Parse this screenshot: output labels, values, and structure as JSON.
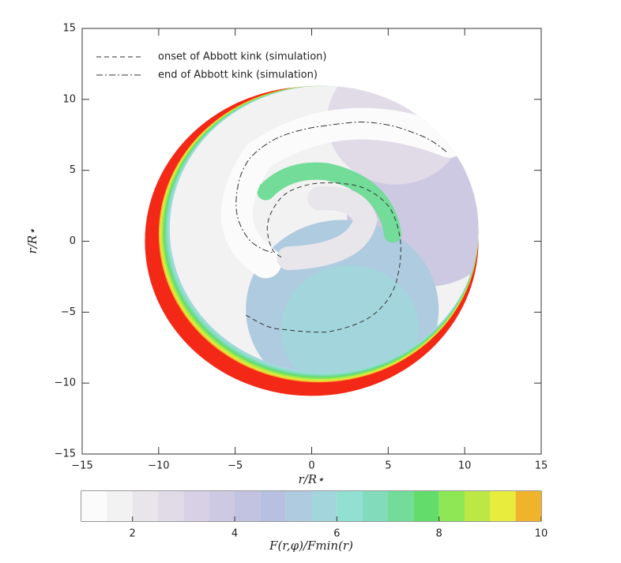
{
  "chart_data": {
    "type": "contour",
    "xlabel": "r/R⋆",
    "ylabel": "r/R⋆",
    "xlim": [
      -15,
      15
    ],
    "ylim": [
      -15,
      15
    ],
    "xticks": [
      {
        "value": -15,
        "label": "−15"
      },
      {
        "value": -10,
        "label": "−10"
      },
      {
        "value": -5,
        "label": "−5"
      },
      0,
      5,
      10,
      15
    ],
    "yticks": [
      {
        "value": -15,
        "label": "−15"
      },
      {
        "value": -10,
        "label": "−10"
      },
      {
        "value": -5,
        "label": "−5"
      },
      0,
      5,
      10,
      15
    ],
    "legend": [
      "onset of Abbott kink (simulation)",
      "end of Abbott kink (simulation)"
    ],
    "colorbar": {
      "label": "F(r,φ)/Fmin(r)",
      "levels": [
        1,
        1.5,
        2,
        2.5,
        3,
        3.5,
        4,
        4.5,
        5,
        5.5,
        6,
        6.5,
        7,
        7.5,
        8,
        8.5,
        9,
        9.5,
        10
      ],
      "colors": [
        "#fbfbfb",
        "#f2f2f3",
        "#e9e6eb",
        "#e1dbe7",
        "#d8d0e5",
        "#cdc9e3",
        "#c2c3e1",
        "#b7c0e0",
        "#aecbdf",
        "#a2d6dc",
        "#92e0d2",
        "#82dcbc",
        "#72dc98",
        "#64dc6c",
        "#8ee856",
        "#bce846",
        "#e8ec3c",
        "#f0b42c"
      ],
      "over_color": "#f42816",
      "ticks": [
        2,
        4,
        6,
        8,
        10
      ]
    }
  }
}
